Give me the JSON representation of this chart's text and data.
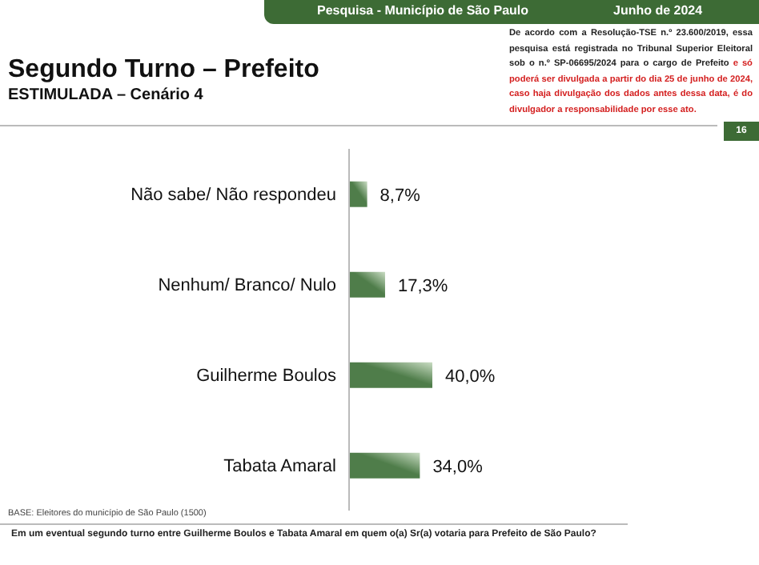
{
  "chart_data": {
    "type": "bar",
    "orientation": "horizontal",
    "title": "Segundo Turno – Prefeito",
    "subtitle": "ESTIMULADA – Cenário 4",
    "categories": [
      "Não sabe/ Não respondeu",
      "Nenhum/ Branco/ Nulo",
      "Guilherme Boulos",
      "Tabata Amaral"
    ],
    "values": [
      8.7,
      17.3,
      40.0,
      34.0
    ],
    "value_labels": [
      "8,7%",
      "17,3%",
      "40,0%",
      "34,0%"
    ],
    "color": "#4f7d4a",
    "annotations": [
      "Pesquisa - Município de São Paulo",
      "Junho de 2024",
      "De acordo com a Resolução-TSE n.º 23.600/2019, essa pesquisa está registrada no Tribunal Superior Eleitoral sob o n.º SP-06695/2024 para o cargo de Prefeito",
      "e só poderá ser divulgada a partir do dia 25 de junho de 2024, caso haja divulgação dos dados antes dessa data, é do divulgador a responsabilidade por esse ato.",
      "16",
      "BASE: Eleitores do município de São Paulo (1500)",
      "Em um eventual segundo turno entre Guilherme Boulos e Tabata Amaral em quem o(a) Sr(a) votaria para Prefeito de São Paulo?"
    ]
  }
}
